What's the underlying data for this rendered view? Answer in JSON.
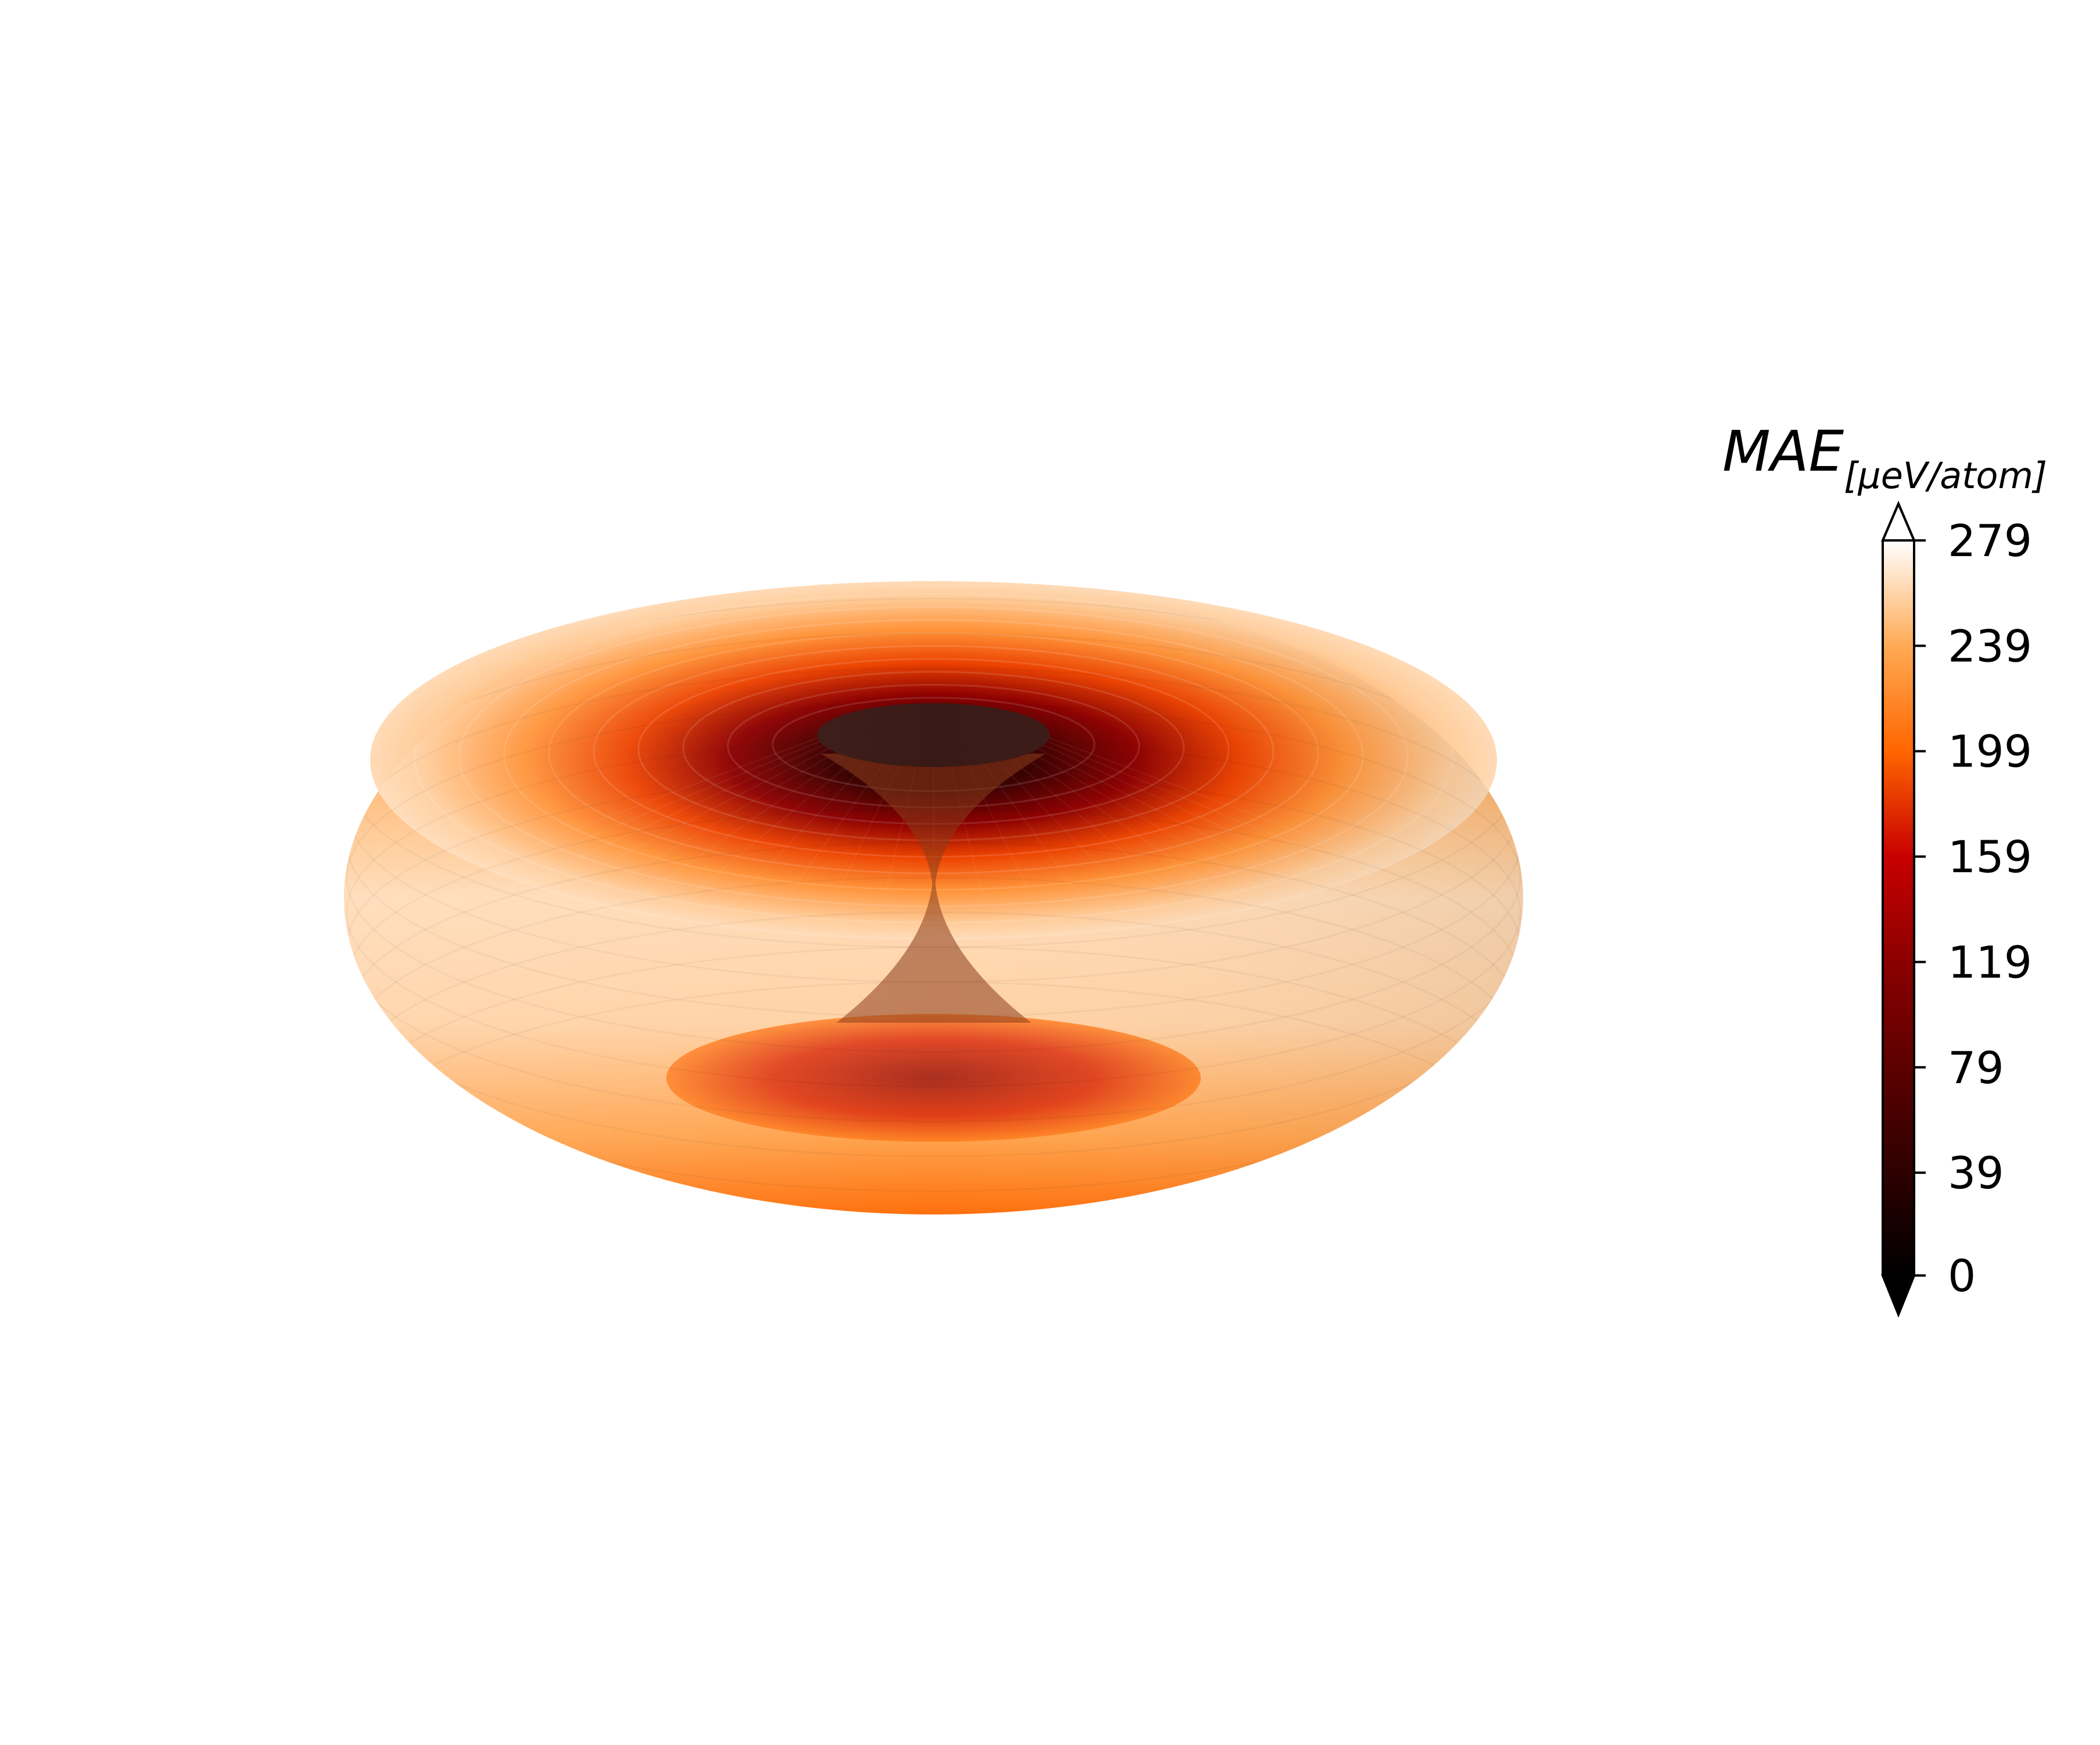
{
  "chart_data": {
    "type": "heatmap",
    "subtype": "3d-surface-torus",
    "title": "",
    "colorbar": {
      "label_main": "MAE",
      "label_sub": "[μeV/atom]",
      "colormap": "gist_heat",
      "range": [
        0,
        279
      ],
      "extend": "both",
      "ticks": [
        0,
        39,
        79,
        119,
        159,
        199,
        239,
        279
      ],
      "tick_labels": [
        "0",
        "39",
        "79",
        "119",
        "159",
        "199",
        "239",
        "279"
      ],
      "colors": {
        "0": "#000000",
        "79": "#5c0000",
        "119": "#8b0000",
        "159": "#c80000",
        "199": "#ff6600",
        "239": "#ffaa55",
        "279": "#ffffff"
      }
    },
    "surface": {
      "shape": "torus-like (spindle)",
      "values_by_polar_angle_deg": [
        {
          "theta": 0,
          "value": 50
        },
        {
          "theta": 20,
          "value": 120
        },
        {
          "theta": 40,
          "value": 185
        },
        {
          "theta": 60,
          "value": 225
        },
        {
          "theta": 80,
          "value": 255
        },
        {
          "theta": 90,
          "value": 262
        }
      ],
      "minimum": "near polar axis (~0)",
      "maximum": "equatorial plane (~270)"
    },
    "axes_visible": false,
    "grid": false
  }
}
